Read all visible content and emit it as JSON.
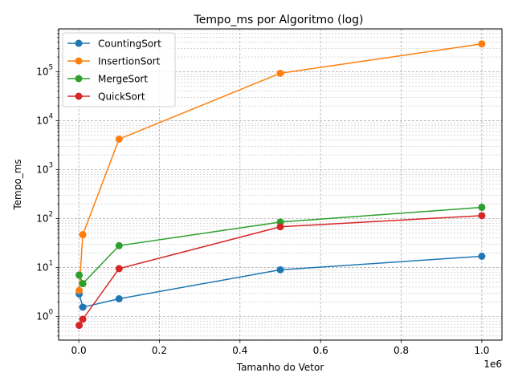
{
  "chart_data": {
    "type": "line",
    "title": "Tempo_ms por Algoritmo (log)",
    "xlabel": "Tamanho do Vetor",
    "ylabel": "Tempo_ms",
    "x_offset_label": "1e6",
    "xscale": "linear",
    "yscale": "log",
    "xlim": [
      -50000,
      1050000
    ],
    "ylim": [
      0.33,
      750000
    ],
    "grid": true,
    "legend_position": "top-left",
    "x_ticks": [
      {
        "value": 0,
        "label": "0.0"
      },
      {
        "value": 200000,
        "label": "0.2"
      },
      {
        "value": 400000,
        "label": "0.4"
      },
      {
        "value": 600000,
        "label": "0.6"
      },
      {
        "value": 800000,
        "label": "0.8"
      },
      {
        "value": 1000000,
        "label": "1.0"
      }
    ],
    "y_ticks": [
      {
        "value": 1,
        "base": "10",
        "exp": "0"
      },
      {
        "value": 10,
        "base": "10",
        "exp": "1"
      },
      {
        "value": 100,
        "base": "10",
        "exp": "2"
      },
      {
        "value": 1000,
        "base": "10",
        "exp": "3"
      },
      {
        "value": 10000,
        "base": "10",
        "exp": "4"
      },
      {
        "value": 100000,
        "base": "10",
        "exp": "5"
      }
    ],
    "x": [
      1000,
      10000,
      100000,
      500000,
      1000000
    ],
    "series": [
      {
        "name": "CountingSort",
        "color": "#1f77b4",
        "values": [
          2.9,
          1.55,
          2.3,
          9.0,
          17.0
        ]
      },
      {
        "name": "InsertionSort",
        "color": "#ff7f0e",
        "values": [
          3.4,
          47,
          4200,
          93000,
          370000
        ]
      },
      {
        "name": "MergeSort",
        "color": "#2ca02c",
        "values": [
          7.0,
          4.7,
          28,
          85,
          170
        ]
      },
      {
        "name": "QuickSort",
        "color": "#d62728",
        "values": [
          0.66,
          0.88,
          9.5,
          68,
          115
        ]
      }
    ]
  }
}
